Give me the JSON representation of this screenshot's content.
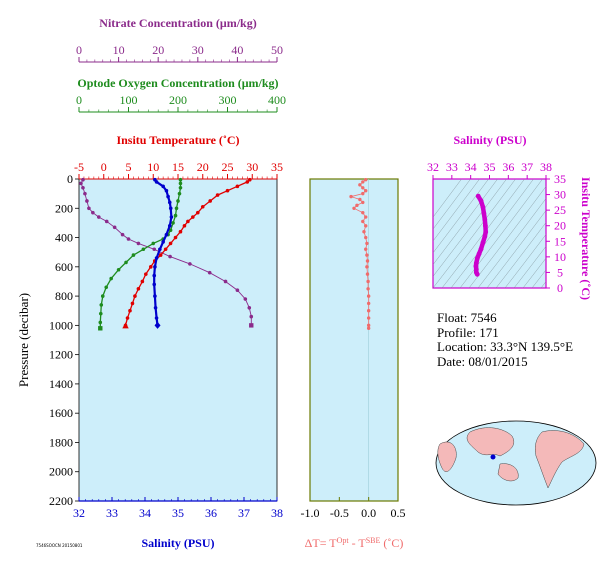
{
  "colors": {
    "nitrate": "#8b2b8b",
    "oxygen": "#1e8c1e",
    "temperature": "#e00000",
    "salinity": "#0000cc",
    "delta_t": "#f06b6b",
    "salinity_ts": "#cc00cc",
    "plot_bg": "#cdeefa",
    "axis_olive": "#6b7a00"
  },
  "info": {
    "float": "Float:  7546",
    "profile": "Profile:  171",
    "location": "Location:  33.3°N  139.5°E",
    "date": "Date:  08/01/2015"
  },
  "small_text": "7546SOOCN 20150801",
  "chart_data": [
    {
      "type": "line",
      "ylabel": "Pressure (decibar)",
      "ylim": [
        2200,
        0
      ],
      "yticks": [
        0,
        200,
        400,
        600,
        800,
        1000,
        1200,
        1400,
        1600,
        1800,
        2000,
        2200
      ],
      "axes": {
        "nitrate": {
          "label": "Nitrate Concentration (μm/kg)",
          "xlim": [
            0,
            50
          ],
          "ticks": [
            0,
            10,
            20,
            30,
            40,
            50
          ]
        },
        "oxygen": {
          "label": "Optode Oxygen Concentration (μm/kg)",
          "xlim": [
            0,
            400
          ],
          "ticks": [
            0,
            100,
            200,
            300,
            400
          ]
        },
        "temperature": {
          "label": "Insitu Temperature (˚C)",
          "xlim": [
            -5,
            35
          ],
          "ticks": [
            -5,
            0,
            5,
            10,
            15,
            20,
            25,
            30,
            35
          ]
        },
        "salinity": {
          "label": "Salinity (PSU)",
          "xlim": [
            32,
            38
          ],
          "ticks": [
            32,
            33,
            34,
            35,
            36,
            37,
            38
          ]
        }
      },
      "series": [
        {
          "name": "Nitrate",
          "key": "nitrate",
          "points": [
            [
              1,
              5
            ],
            [
              0.5,
              30
            ],
            [
              1,
              60
            ],
            [
              1.5,
              100
            ],
            [
              2,
              150
            ],
            [
              2.5,
              200
            ],
            [
              3.5,
              230
            ],
            [
              5,
              260
            ],
            [
              7,
              290
            ],
            [
              9,
              330
            ],
            [
              11,
              380
            ],
            [
              12.5,
              410
            ],
            [
              15,
              440
            ],
            [
              19,
              480
            ],
            [
              23,
              530
            ],
            [
              28,
              580
            ],
            [
              33,
              640
            ],
            [
              37,
              700
            ],
            [
              40,
              760
            ],
            [
              42,
              820
            ],
            [
              43,
              880
            ],
            [
              43.5,
              940
            ],
            [
              43.5,
              1000
            ]
          ]
        },
        {
          "name": "Oxygen",
          "key": "oxygen",
          "points": [
            [
              205,
              5
            ],
            [
              205,
              30
            ],
            [
              205,
              60
            ],
            [
              203,
              100
            ],
            [
              200,
              150
            ],
            [
              197,
              200
            ],
            [
              195,
              250
            ],
            [
              190,
              300
            ],
            [
              185,
              350
            ],
            [
              180,
              380
            ],
            [
              170,
              410
            ],
            [
              150,
              440
            ],
            [
              130,
              480
            ],
            [
              110,
              520
            ],
            [
              95,
              570
            ],
            [
              80,
              620
            ],
            [
              65,
              680
            ],
            [
              55,
              740
            ],
            [
              48,
              800
            ],
            [
              45,
              860
            ],
            [
              44,
              920
            ],
            [
              43,
              980
            ],
            [
              43,
              1020
            ]
          ]
        },
        {
          "name": "Temperature",
          "key": "temperature",
          "points": [
            [
              29.5,
              5
            ],
            [
              29,
              20
            ],
            [
              27,
              50
            ],
            [
              25,
              80
            ],
            [
              23,
              110
            ],
            [
              21.5,
              150
            ],
            [
              20,
              190
            ],
            [
              19,
              230
            ],
            [
              18,
              260
            ],
            [
              17,
              290
            ],
            [
              16.3,
              320
            ],
            [
              15.5,
              360
            ],
            [
              14.5,
              400
            ],
            [
              13.5,
              440
            ],
            [
              12.5,
              480
            ],
            [
              11.5,
              520
            ],
            [
              10.3,
              560
            ],
            [
              9.5,
              600
            ],
            [
              8.5,
              650
            ],
            [
              7.8,
              700
            ],
            [
              7,
              750
            ],
            [
              6.3,
              800
            ],
            [
              5.8,
              850
            ],
            [
              5.3,
              900
            ],
            [
              4.8,
              950
            ],
            [
              4.4,
              1000
            ]
          ]
        },
        {
          "name": "Salinity",
          "key": "salinity",
          "points": [
            [
              34.3,
              5
            ],
            [
              34.35,
              20
            ],
            [
              34.55,
              50
            ],
            [
              34.65,
              80
            ],
            [
              34.7,
              120
            ],
            [
              34.75,
              160
            ],
            [
              34.78,
              200
            ],
            [
              34.8,
              260
            ],
            [
              34.75,
              320
            ],
            [
              34.65,
              380
            ],
            [
              34.55,
              430
            ],
            [
              34.45,
              480
            ],
            [
              34.35,
              540
            ],
            [
              34.3,
              600
            ],
            [
              34.28,
              660
            ],
            [
              34.28,
              720
            ],
            [
              34.3,
              800
            ],
            [
              34.32,
              880
            ],
            [
              34.35,
              950
            ],
            [
              34.38,
              1000
            ]
          ]
        }
      ]
    },
    {
      "type": "scatter",
      "xlabel": "ΔT= T",
      "xlabel_sup1": "Opt",
      "xlabel_mid": " - T",
      "xlabel_sup2": "SBE",
      "xlabel_end": " (˚C)",
      "xlim": [
        -1.0,
        0.5
      ],
      "xticks": [
        -1.0,
        -0.5,
        0.0,
        0.5
      ],
      "ylim": [
        2200,
        0
      ],
      "points": [
        [
          -0.05,
          5
        ],
        [
          -0.1,
          20
        ],
        [
          -0.15,
          40
        ],
        [
          -0.1,
          60
        ],
        [
          -0.05,
          80
        ],
        [
          -0.1,
          100
        ],
        [
          -0.3,
          120
        ],
        [
          -0.15,
          140
        ],
        [
          -0.1,
          160
        ],
        [
          -0.2,
          180
        ],
        [
          -0.25,
          200
        ],
        [
          -0.1,
          230
        ],
        [
          -0.05,
          260
        ],
        [
          -0.1,
          290
        ],
        [
          -0.05,
          320
        ],
        [
          -0.08,
          360
        ],
        [
          -0.05,
          400
        ],
        [
          -0.03,
          440
        ],
        [
          -0.05,
          480
        ],
        [
          -0.03,
          520
        ],
        [
          -0.02,
          560
        ],
        [
          -0.03,
          600
        ],
        [
          -0.02,
          650
        ],
        [
          -0.01,
          700
        ],
        [
          -0.01,
          750
        ],
        [
          0.0,
          800
        ],
        [
          0.0,
          850
        ],
        [
          0.0,
          900
        ],
        [
          0.0,
          950
        ],
        [
          0.0,
          1000
        ],
        [
          0.0,
          1020
        ]
      ]
    },
    {
      "type": "line",
      "title": "Salinity (PSU)",
      "xlim": [
        32,
        38
      ],
      "xticks": [
        32,
        33,
        34,
        35,
        36,
        37,
        38
      ],
      "ylabel": "Insitu Temperature (˚C)",
      "ylim": [
        0,
        35
      ],
      "yticks": [
        0,
        5,
        10,
        15,
        20,
        25,
        30,
        35
      ],
      "points": [
        [
          34.35,
          4.4
        ],
        [
          34.3,
          5
        ],
        [
          34.3,
          6
        ],
        [
          34.28,
          7
        ],
        [
          34.3,
          8
        ],
        [
          34.35,
          9.5
        ],
        [
          34.45,
          11
        ],
        [
          34.55,
          12.5
        ],
        [
          34.65,
          14.5
        ],
        [
          34.75,
          16.5
        ],
        [
          34.8,
          18
        ],
        [
          34.78,
          20
        ],
        [
          34.75,
          22
        ],
        [
          34.7,
          24
        ],
        [
          34.65,
          26
        ],
        [
          34.55,
          28
        ],
        [
          34.4,
          29.5
        ]
      ]
    }
  ]
}
